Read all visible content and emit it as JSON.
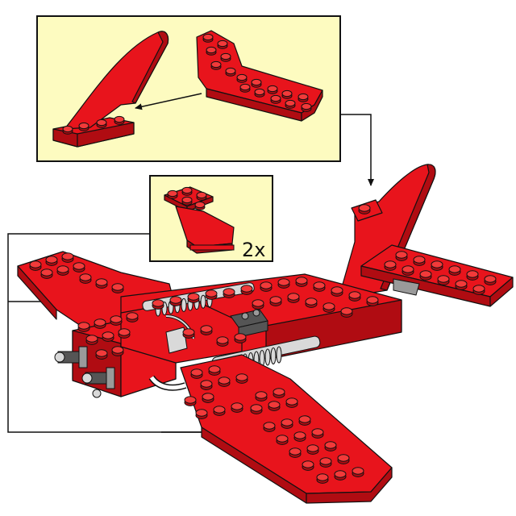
{
  "colors": {
    "panel_fill": "#fdfbc0",
    "brick_red": "#e8141c",
    "brick_shadow": "#b00c12",
    "stud_top": "#f23a3a",
    "outline": "#111111",
    "grey": "#9a9a9a",
    "light_grey": "#d9d9d9",
    "dark_grey": "#555555"
  },
  "callout_small": {
    "count_label": "2x"
  }
}
